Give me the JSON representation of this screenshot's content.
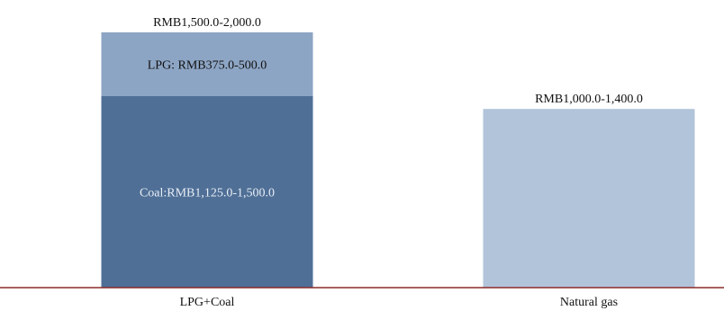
{
  "chart_data": {
    "type": "bar",
    "stacked": true,
    "categories": [
      "LPG+Coal",
      "Natural gas"
    ],
    "ylim": [
      0,
      2000
    ],
    "grid": false,
    "bars": [
      {
        "category": "LPG+Coal",
        "total_label": "RMB1,500.0-2,000.0",
        "segments": [
          {
            "label": "Coal:RMB1,125.0-1,500.0",
            "value": 1500,
            "color": "#4f6f96",
            "text_color": "#e8eef6"
          },
          {
            "label": "LPG: RMB375.0-500.0",
            "value": 500,
            "color": "#8da5c4",
            "text_color": "#111111"
          }
        ]
      },
      {
        "category": "Natural gas",
        "total_label": "RMB1,000.0-1,400.0",
        "segments": [
          {
            "label": "",
            "value": 1400,
            "color": "#b2c4da",
            "text_color": "#111111"
          }
        ]
      }
    ],
    "axis_color": "#8b2a2a"
  }
}
